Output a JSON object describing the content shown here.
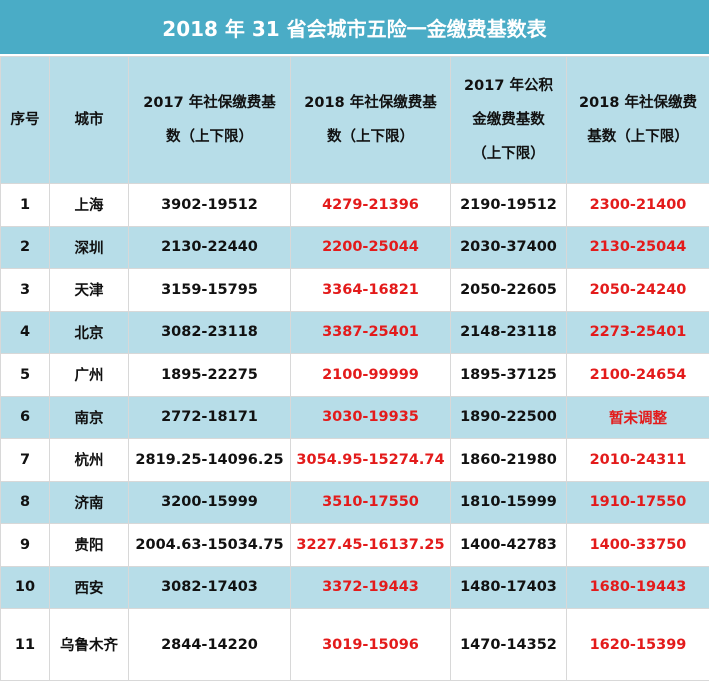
{
  "title": "2018 年 31 省会城市五险一金缴费基数表",
  "headers": {
    "seq": "序号",
    "city": "城市",
    "ss2017_l1": "2017 年社保缴费基",
    "ss2017_l2": "数（上下限）",
    "ss2018_l1": "2018 年社保缴费基",
    "ss2018_l2": "数（上下限）",
    "hf2017_l1": "2017 年公积",
    "hf2017_l2": "金缴费基数",
    "hf2017_l3": "（上下限）",
    "hf2018_l1": "2018 年社保缴费",
    "hf2018_l2": "基数（上下限）"
  },
  "rows": [
    {
      "seq": "1",
      "city": "上海",
      "ss2017": "3902-19512",
      "ss2018": "4279-21396",
      "hf2017": "2190-19512",
      "hf2018": "2300-21400"
    },
    {
      "seq": "2",
      "city": "深圳",
      "ss2017": "2130-22440",
      "ss2018": "2200-25044",
      "hf2017": "2030-37400",
      "hf2018": "2130-25044"
    },
    {
      "seq": "3",
      "city": "天津",
      "ss2017": "3159-15795",
      "ss2018": "3364-16821",
      "hf2017": "2050-22605",
      "hf2018": "2050-24240"
    },
    {
      "seq": "4",
      "city": "北京",
      "ss2017": "3082-23118",
      "ss2018": "3387-25401",
      "hf2017": "2148-23118",
      "hf2018": "2273-25401"
    },
    {
      "seq": "5",
      "city": "广州",
      "ss2017": "1895-22275",
      "ss2018": "2100-99999",
      "hf2017": "1895-37125",
      "hf2018": "2100-24654"
    },
    {
      "seq": "6",
      "city": "南京",
      "ss2017": "2772-18171",
      "ss2018": "3030-19935",
      "hf2017": "1890-22500",
      "hf2018": "暂未调整"
    },
    {
      "seq": "7",
      "city": "杭州",
      "ss2017": "2819.25-14096.25",
      "ss2018": "3054.95-15274.74",
      "hf2017": "1860-21980",
      "hf2018": "2010-24311"
    },
    {
      "seq": "8",
      "city": "济南",
      "ss2017": "3200-15999",
      "ss2018": "3510-17550",
      "hf2017": "1810-15999",
      "hf2018": "1910-17550"
    },
    {
      "seq": "9",
      "city": "贵阳",
      "ss2017": "2004.63-15034.75",
      "ss2018": "3227.45-16137.25",
      "hf2017": "1400-42783",
      "hf2018": "1400-33750"
    },
    {
      "seq": "10",
      "city": "西安",
      "ss2017": "3082-17403",
      "ss2018": "3372-19443",
      "hf2017": "1480-17403",
      "hf2018": "1680-19443"
    },
    {
      "seq": "11",
      "city": "乌鲁木齐",
      "ss2017": "2844-14220",
      "ss2018": "3019-15096",
      "hf2017": "1470-14352",
      "hf2018": "1620-15399"
    }
  ],
  "colors": {
    "header_bg": "#4aacc6",
    "band": "#b7dde8",
    "highlight": "#e31b1b"
  }
}
